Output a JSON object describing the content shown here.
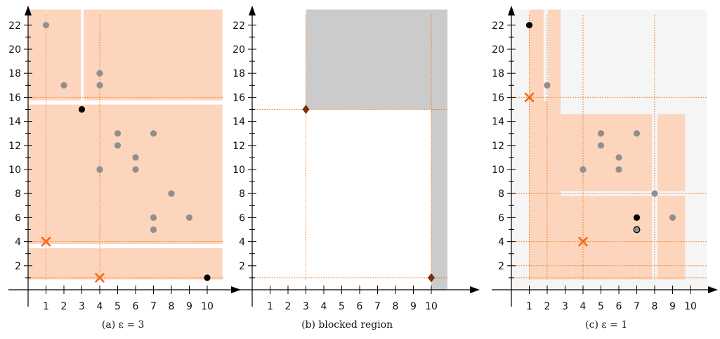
{
  "colors": {
    "region_fill": "#fdd5bd",
    "blocked_fill": "#cbcbcb",
    "faint_fill": "#f5f5f5",
    "guide_line": "#e8741a",
    "point_gray": "#8f8f8f",
    "point_black": "#000000",
    "cross": "#f26b1c",
    "diamond": "#7a2e0e",
    "axis": "#000000"
  },
  "chart_data": [
    {
      "type": "scatter",
      "caption": "(a) ε = 3",
      "xlim": [
        0,
        11
      ],
      "ylim": [
        0,
        23
      ],
      "x_ticks": [
        "1",
        "2",
        "3",
        "4",
        "5",
        "6",
        "7",
        "8",
        "9",
        "10"
      ],
      "y_ticks": [
        "2",
        "4",
        "6",
        "8",
        "10",
        "12",
        "14",
        "16",
        "18",
        "20",
        "22"
      ],
      "regions": [
        {
          "x0": 0.0,
          "x1": 4.85,
          "y0": 0.85,
          "y1": 3.45,
          "style": "region"
        },
        {
          "x0": 4.15,
          "x1": 10.85,
          "y0": 0.85,
          "y1": 3.45,
          "style": "region"
        },
        {
          "x0": 0.0,
          "x1": 10.85,
          "y0": 3.8,
          "y1": 15.4,
          "style": "region"
        },
        {
          "x0": 0.0,
          "x1": 2.95,
          "y0": 15.75,
          "y1": 23.3,
          "style": "region"
        },
        {
          "x0": 3.1,
          "x1": 10.85,
          "y0": 15.75,
          "y1": 23.3,
          "style": "region"
        }
      ],
      "guides_v": [
        1,
        4
      ],
      "guides_h": [
        1,
        4,
        16
      ],
      "gray_points": [
        [
          1,
          22
        ],
        [
          2,
          17
        ],
        [
          4,
          18
        ],
        [
          4,
          17
        ],
        [
          4,
          10
        ],
        [
          5,
          13
        ],
        [
          5,
          12
        ],
        [
          6,
          11
        ],
        [
          6,
          10
        ],
        [
          7,
          13
        ],
        [
          8,
          8
        ],
        [
          7,
          6
        ],
        [
          7,
          5
        ],
        [
          9,
          6
        ]
      ],
      "black_points": [
        [
          3,
          15
        ],
        [
          10,
          1
        ]
      ],
      "crosses": [
        [
          1,
          4
        ],
        [
          4,
          1
        ]
      ],
      "diamonds": []
    },
    {
      "type": "scatter",
      "caption": "(b) blocked region",
      "xlim": [
        0,
        11
      ],
      "ylim": [
        0,
        23
      ],
      "x_ticks": [
        "1",
        "2",
        "3",
        "4",
        "5",
        "6",
        "7",
        "8",
        "9",
        "10"
      ],
      "y_ticks": [
        "2",
        "4",
        "6",
        "8",
        "10",
        "12",
        "14",
        "16",
        "18",
        "20",
        "22"
      ],
      "regions": [
        {
          "x0": 3.0,
          "x1": 10.9,
          "y0": 15.0,
          "y1": 23.3,
          "style": "blocked"
        },
        {
          "x0": 10.0,
          "x1": 10.9,
          "y0": 0.0,
          "y1": 23.3,
          "style": "blocked"
        }
      ],
      "guides_v": [
        3,
        10
      ],
      "guides_h": [
        1,
        15
      ],
      "gray_points": [],
      "black_points": [],
      "crosses": [],
      "diamonds": [
        [
          3,
          15
        ],
        [
          10,
          1
        ]
      ]
    },
    {
      "type": "scatter",
      "caption": "(c) ε = 1",
      "xlim": [
        0,
        11
      ],
      "ylim": [
        0,
        23
      ],
      "x_ticks": [
        "1",
        "2",
        "3",
        "4",
        "5",
        "6",
        "7",
        "8",
        "9",
        "10"
      ],
      "y_ticks": [
        "2",
        "4",
        "6",
        "8",
        "10",
        "12",
        "14",
        "16",
        "18",
        "20",
        "22"
      ],
      "regions": [
        {
          "x0": 0.0,
          "x1": 10.9,
          "y0": 0.0,
          "y1": 23.3,
          "style": "faint"
        },
        {
          "x0": 1.0,
          "x1": 1.8,
          "y0": 0.85,
          "y1": 23.3,
          "style": "region"
        },
        {
          "x0": 2.05,
          "x1": 2.75,
          "y0": 0.85,
          "y1": 23.3,
          "style": "region"
        },
        {
          "x0": 1.0,
          "x1": 2.75,
          "y0": 0.85,
          "y1": 15.7,
          "style": "region"
        },
        {
          "x0": 2.75,
          "x1": 7.85,
          "y0": 8.2,
          "y1": 14.6,
          "style": "region"
        },
        {
          "x0": 8.15,
          "x1": 9.7,
          "y0": 8.2,
          "y1": 14.6,
          "style": "region"
        },
        {
          "x0": 1.0,
          "x1": 7.85,
          "y0": 0.85,
          "y1": 7.8,
          "style": "region"
        },
        {
          "x0": 8.15,
          "x1": 9.7,
          "y0": 0.85,
          "y1": 7.8,
          "style": "region"
        }
      ],
      "guides_v": [
        1,
        2,
        4,
        8
      ],
      "guides_h": [
        1,
        2,
        4,
        8,
        16
      ],
      "gray_points": [
        [
          2,
          17
        ],
        [
          4,
          10
        ],
        [
          5,
          13
        ],
        [
          5,
          12
        ],
        [
          6,
          11
        ],
        [
          6,
          10
        ],
        [
          7,
          13
        ],
        [
          8,
          8
        ],
        [
          9,
          6
        ]
      ],
      "black_points": [
        [
          1,
          22
        ],
        [
          7,
          6
        ]
      ],
      "ringed_points": [
        [
          7,
          5
        ]
      ],
      "crosses": [
        [
          1,
          16
        ],
        [
          4,
          4
        ]
      ],
      "diamonds": []
    }
  ]
}
